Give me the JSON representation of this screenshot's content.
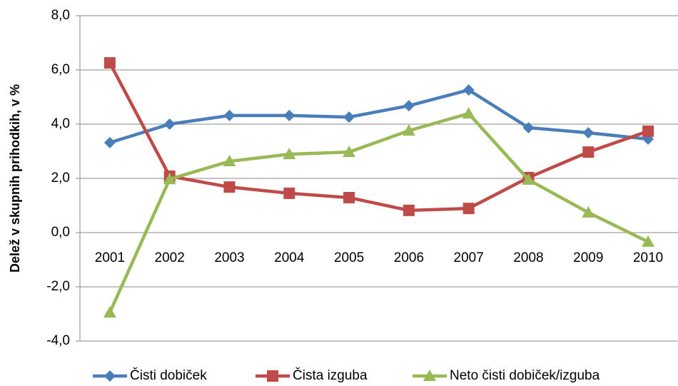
{
  "chart_data": {
    "type": "line",
    "y_label": "Delež v skupnih prihodkih, v %",
    "categories": [
      "2001",
      "2002",
      "2003",
      "2004",
      "2005",
      "2006",
      "2007",
      "2008",
      "2009",
      "2010"
    ],
    "series": [
      {
        "name": "Čisti dobiček",
        "color": "#4a7ebb",
        "marker": "diamond",
        "values": [
          3.32,
          4.0,
          4.32,
          4.32,
          4.26,
          4.68,
          5.26,
          3.87,
          3.68,
          3.45
        ]
      },
      {
        "name": "Čista izguba",
        "color": "#be4b48",
        "marker": "square",
        "values": [
          6.26,
          2.08,
          1.68,
          1.45,
          1.29,
          0.82,
          0.89,
          2.03,
          2.97,
          3.74
        ]
      },
      {
        "name": "Neto čisti dobiček/izguba",
        "color": "#98b954",
        "marker": "triangle",
        "values": [
          -2.95,
          1.97,
          2.63,
          2.89,
          2.97,
          3.76,
          4.39,
          1.95,
          0.74,
          -0.34
        ]
      }
    ],
    "ylim": [
      -4,
      8
    ],
    "yticks": [
      {
        "value": -4,
        "label": "-4,0"
      },
      {
        "value": -2,
        "label": "-2,0"
      },
      {
        "value": 0,
        "label": "0,0"
      },
      {
        "value": 2,
        "label": "2,0"
      },
      {
        "value": 4,
        "label": "4,0"
      },
      {
        "value": 6,
        "label": "6,0"
      },
      {
        "value": 8,
        "label": "8,0"
      }
    ],
    "grid": true
  }
}
